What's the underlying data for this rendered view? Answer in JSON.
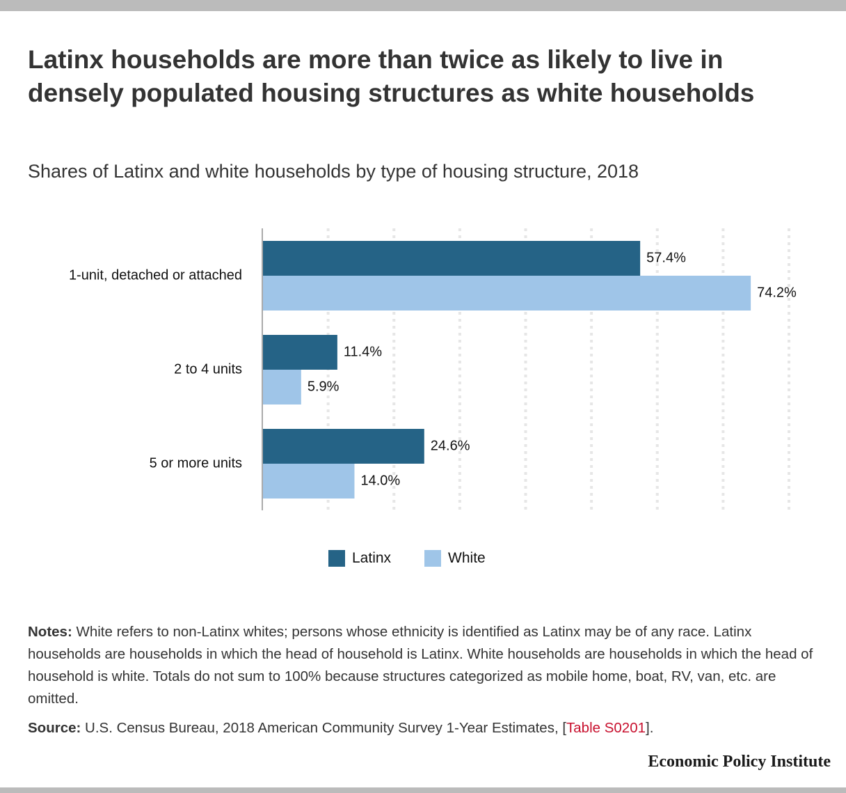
{
  "header": {
    "title": "Latinx households are more than twice as likely to live in densely populated housing structures as white households",
    "subtitle": "Shares of Latinx and white households by type of housing structure, 2018"
  },
  "colors": {
    "latinx": "#256386",
    "white": "#9fc5e8",
    "gridline": "#e6e6e6",
    "axis": "#aaaaaa",
    "link": "#c8102e",
    "frame": "#bbbbbb"
  },
  "chart_data": {
    "type": "bar",
    "orientation": "horizontal",
    "title": "Latinx households are more than twice as likely to live in densely populated housing structures as white households",
    "subtitle": "Shares of Latinx and white households by type of housing structure, 2018",
    "categories": [
      "1-unit, detached or attached",
      "2 to 4 units",
      "5 or more units"
    ],
    "series": [
      {
        "name": "Latinx",
        "values": [
          57.4,
          11.4,
          24.6
        ],
        "labels": [
          "57.4%",
          "11.4%",
          "24.6%"
        ]
      },
      {
        "name": "White",
        "values": [
          74.2,
          5.9,
          14.0
        ],
        "labels": [
          "74.2%",
          "5.9%",
          "14.0%"
        ]
      }
    ],
    "xlabel": "",
    "ylabel": "",
    "xlim": [
      0,
      80
    ],
    "grid_step": 10,
    "grid": true,
    "legend_position": "bottom-center",
    "unit": "%"
  },
  "legend": {
    "items": [
      {
        "label": "Latinx"
      },
      {
        "label": "White"
      }
    ]
  },
  "footer": {
    "notes_label": "Notes:",
    "notes_text": "White refers to non-Latinx whites; persons whose ethnicity is identified as Latinx may be of any race. Latinx households are households in which the head of household is Latinx. White households are households in which the head of household is white. Totals do not sum to 100% because structures categorized as mobile home, boat, RV, van, etc. are omitted.",
    "source_label": "Source:",
    "source_text": "U.S. Census Bureau, 2018 American Community Survey 1-Year Estimates, [",
    "source_link": "Table S0201",
    "source_end": "].",
    "brand": "Economic Policy Institute"
  }
}
